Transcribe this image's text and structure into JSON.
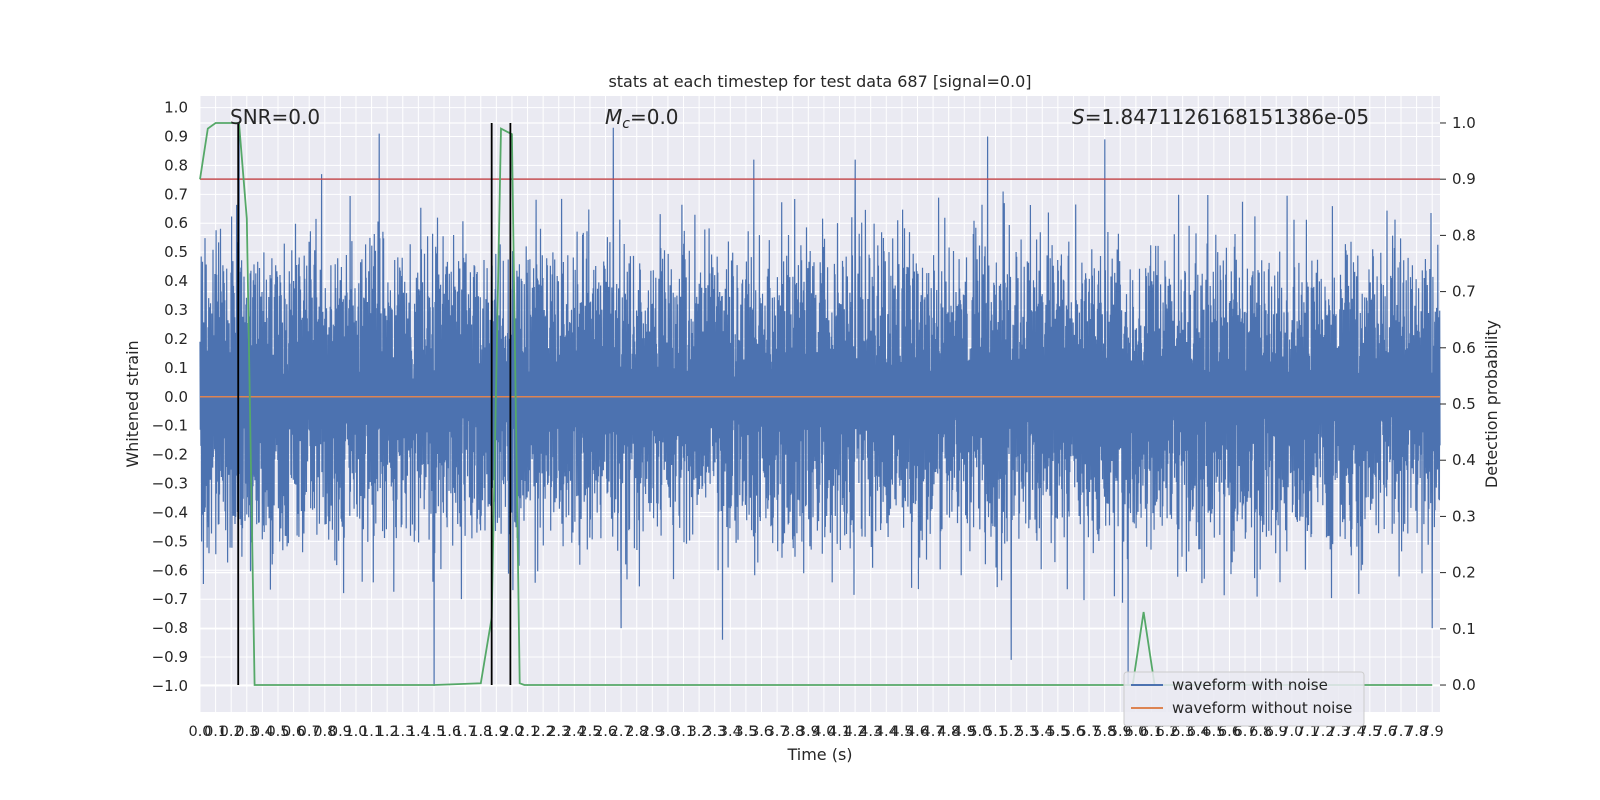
{
  "chart_data": {
    "type": "line",
    "title": "stats at each timestep for test data 687 [signal=0.0]",
    "xlabel": "Time (s)",
    "ylabel": "Whitened strain",
    "y2label": "Detection probability",
    "xlim": [
      0.0,
      7.95
    ],
    "ylim": [
      -1.09,
      1.04
    ],
    "y2lim": [
      -0.048,
      1.048
    ],
    "x_ticks": [
      0.0,
      0.1,
      0.2,
      0.3,
      0.4,
      0.5,
      0.6,
      0.7,
      0.8,
      0.9,
      1.0,
      1.1,
      1.2,
      1.3,
      1.4,
      1.5,
      1.6,
      1.7,
      1.8,
      1.9,
      2.0,
      2.1,
      2.2,
      2.3,
      2.4,
      2.5,
      2.6,
      2.7,
      2.8,
      2.9,
      3.0,
      3.1,
      3.2,
      3.3,
      3.4,
      3.5,
      3.6,
      3.7,
      3.8,
      3.9,
      4.0,
      4.1,
      4.2,
      4.3,
      4.4,
      4.5,
      4.6,
      4.7,
      4.8,
      4.9,
      5.0,
      5.1,
      5.2,
      5.3,
      5.4,
      5.5,
      5.6,
      5.7,
      5.8,
      5.9,
      6.0,
      6.1,
      6.2,
      6.3,
      6.4,
      6.5,
      6.6,
      6.7,
      6.8,
      6.9,
      7.0,
      7.1,
      7.2,
      7.3,
      7.4,
      7.5,
      7.6,
      7.7,
      7.8,
      7.9
    ],
    "y_ticks": [
      -1.0,
      -0.9,
      -0.8,
      -0.7,
      -0.6,
      -0.5,
      -0.4,
      -0.3,
      -0.2,
      -0.1,
      0.0,
      0.1,
      0.2,
      0.3,
      0.4,
      0.5,
      0.6,
      0.7,
      0.8,
      0.9,
      1.0
    ],
    "y2_ticks": [
      0.0,
      0.1,
      0.2,
      0.3,
      0.4,
      0.5,
      0.6,
      0.7,
      0.8,
      0.9,
      1.0
    ],
    "grid": true,
    "legend_position": "lower right",
    "series": [
      {
        "name": "waveform with noise",
        "axis": "left",
        "color": "#4c72b0",
        "note_kind": "dense noise trace",
        "typical_range": [
          -0.45,
          0.45
        ],
        "extremes": [
          {
            "x": 0.25,
            "y": 0.93
          },
          {
            "x": 0.78,
            "y": 0.77
          },
          {
            "x": 1.15,
            "y": 0.91
          },
          {
            "x": 1.5,
            "y": -1.0
          },
          {
            "x": 2.65,
            "y": 0.93
          },
          {
            "x": 2.7,
            "y": -0.8
          },
          {
            "x": 3.35,
            "y": -0.84
          },
          {
            "x": 3.55,
            "y": 0.82
          },
          {
            "x": 4.2,
            "y": 0.82
          },
          {
            "x": 5.05,
            "y": 0.9
          },
          {
            "x": 5.2,
            "y": -0.91
          },
          {
            "x": 5.8,
            "y": 0.89
          },
          {
            "x": 5.95,
            "y": -1.0
          },
          {
            "x": 7.9,
            "y": -0.8
          }
        ]
      },
      {
        "name": "waveform without noise",
        "axis": "left",
        "color": "#dd8452",
        "x": [
          0.0,
          7.95
        ],
        "y": [
          0.0,
          0.0
        ]
      },
      {
        "axis": "right",
        "color": "#55a868",
        "x": [
          0.0,
          0.05,
          0.1,
          0.15,
          0.2,
          0.25,
          0.3,
          0.35,
          0.4,
          1.5,
          1.8,
          1.87,
          1.93,
          2.0,
          2.05,
          2.08,
          2.2,
          5.9,
          5.98,
          6.05,
          6.12,
          6.2,
          7.9
        ],
        "y": [
          0.9,
          0.99,
          1.0,
          1.0,
          1.0,
          1.0,
          0.83,
          0.0,
          0.0,
          0.0,
          0.003,
          0.12,
          0.99,
          0.98,
          0.003,
          0.0,
          0.0,
          0.0,
          0.0,
          0.13,
          0.0,
          0.0,
          0.0
        ]
      }
    ],
    "hlines": [
      {
        "axis": "right",
        "value": 0.9,
        "color": "#c44e52"
      }
    ],
    "vlines": [
      {
        "x": 0.245,
        "color": "#000000",
        "y_from": 0.0,
        "y_to": 1.0
      },
      {
        "x": 1.87,
        "color": "#000000",
        "y_from": 0.0,
        "y_to": 1.0
      },
      {
        "x": 1.99,
        "color": "#000000",
        "y_from": 0.0,
        "y_to": 1.0
      }
    ],
    "annotations": {
      "snr": "SNR=0.0",
      "mc_symbol": "M",
      "mc_sub": "c",
      "mc_value": "=0.0",
      "s_symbol": "S",
      "s_value": "=1.8471126168151386e-05"
    }
  }
}
